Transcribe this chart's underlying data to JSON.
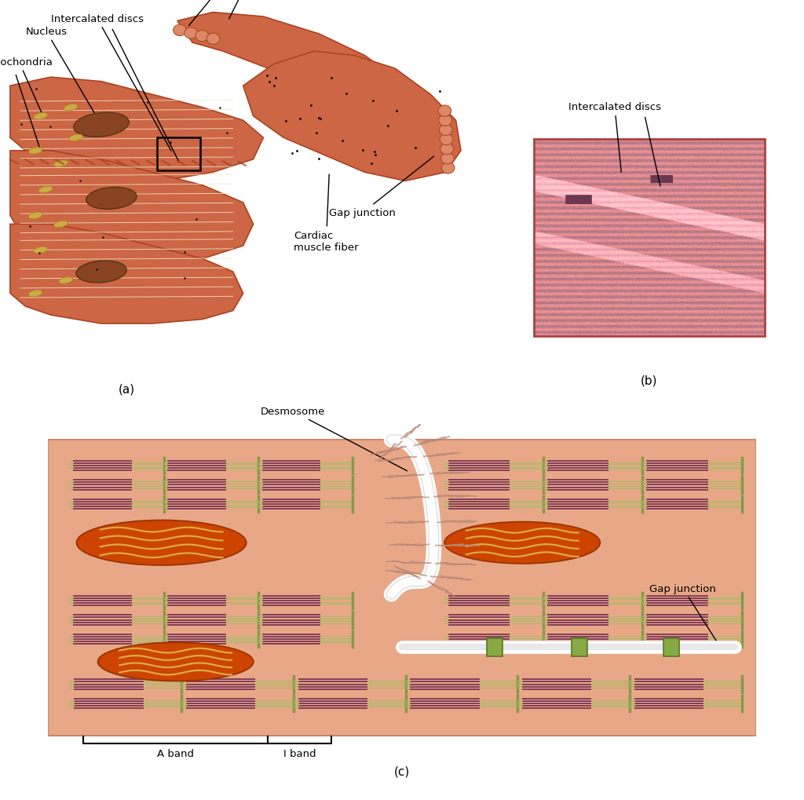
{
  "bg_color": "#ffffff",
  "title_a": "(a)",
  "title_b": "(b)",
  "title_c": "(c)",
  "muscle_color": "#cc6644",
  "muscle_dark": "#aa4422",
  "muscle_light": "#dd8866",
  "panel_c_bg": "#e8a888",
  "myofibril_dark": "#7a3555",
  "myofibril_green": "#889944",
  "myofibril_light_green": "#aabb66",
  "mito_orange": "#cc4400",
  "mito_yellow": "#ddaa44",
  "gap_junction_color": "#88aa44",
  "desmosome_color": "#cc9988",
  "nucleus_color": "#884422",
  "white_line": "#ffffff",
  "arrow_gray": "#bbbbbb",
  "text_color": "#000000",
  "label_fontsize": 9.5,
  "sub_fontsize": 11.0,
  "striation_color": "#f0e8d0",
  "mito_small_color": "#ccaa44",
  "border_color": "#cc8866"
}
